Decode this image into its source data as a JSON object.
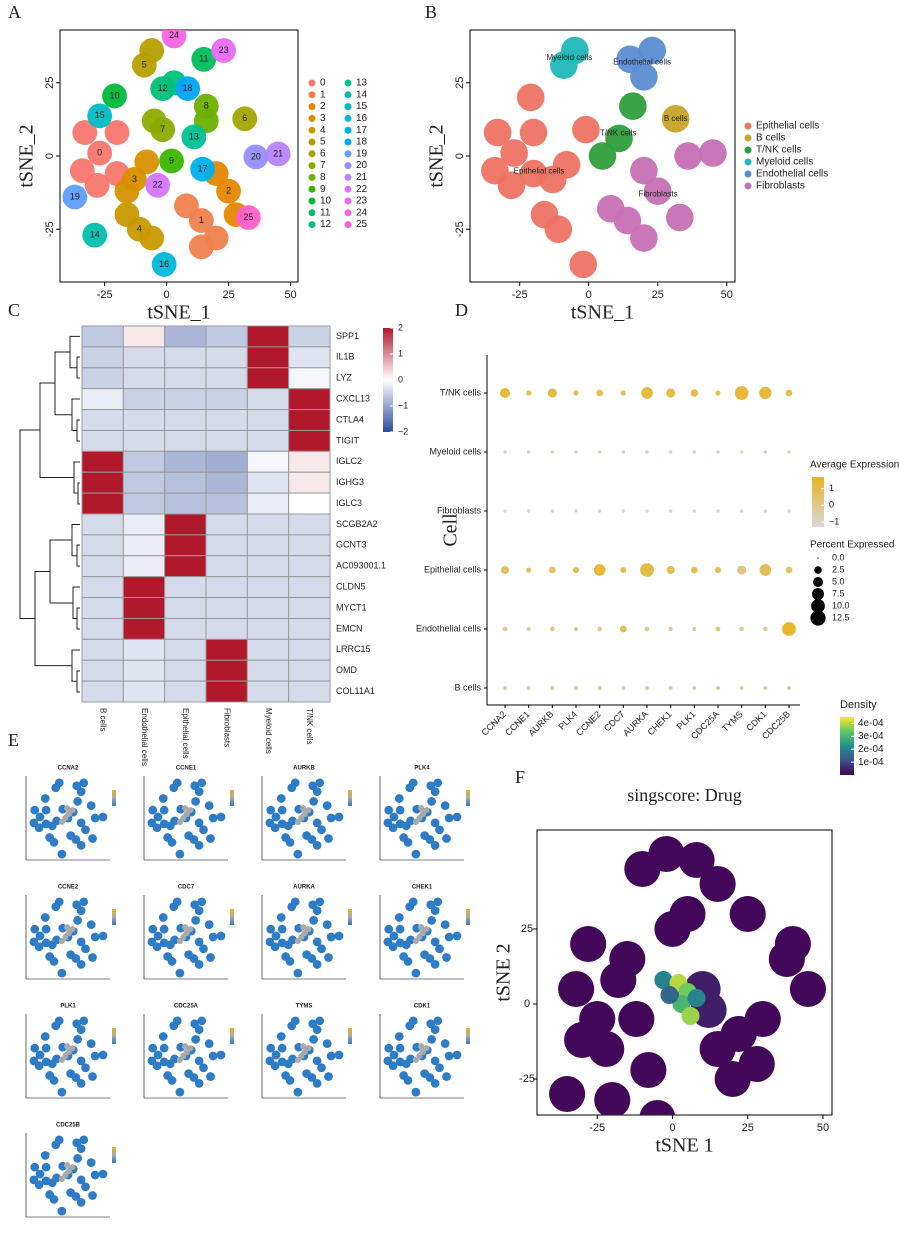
{
  "chart_data": [
    {
      "type": "scatter",
      "label": "A",
      "xlabel": "tSNE_1",
      "ylabel": "tSNE_2",
      "xlim": [
        -43,
        53
      ],
      "ylim": [
        -43,
        43
      ],
      "xticks": [
        -25,
        0,
        25,
        50
      ],
      "yticks": [
        -25,
        0,
        25
      ],
      "series": [
        {
          "name": "0",
          "color": "#F8766D",
          "x": [
            -27,
            -34,
            -20,
            -28,
            -33,
            -20
          ],
          "y": [
            1,
            -5,
            8,
            -10,
            8,
            -6
          ]
        },
        {
          "name": "1",
          "color": "#F07F4E",
          "x": [
            14,
            8,
            20,
            14
          ],
          "y": [
            -22,
            -17,
            -28,
            -31
          ]
        },
        {
          "name": "2",
          "color": "#E58700",
          "x": [
            25,
            20,
            28
          ],
          "y": [
            -12,
            -6,
            -20
          ]
        },
        {
          "name": "3",
          "color": "#D89000",
          "x": [
            -13,
            -8,
            -16
          ],
          "y": [
            -8,
            -2,
            -12
          ]
        },
        {
          "name": "4",
          "color": "#C99800",
          "x": [
            -11,
            -16,
            -6
          ],
          "y": [
            -25,
            -20,
            -28
          ]
        },
        {
          "name": "5",
          "color": "#B79F00",
          "x": [
            -9,
            -6
          ],
          "y": [
            31,
            36
          ]
        },
        {
          "name": "6",
          "color": "#A3A500",
          "x": [
            31.5
          ],
          "y": [
            12.7
          ]
        },
        {
          "name": "7",
          "color": "#8BAB00",
          "x": [
            -1.6,
            -5
          ],
          "y": [
            9,
            12
          ]
        },
        {
          "name": "8",
          "color": "#6BB100",
          "x": [
            16,
            16
          ],
          "y": [
            17,
            12
          ]
        },
        {
          "name": "9",
          "color": "#39B600",
          "x": [
            2
          ],
          "y": [
            -1.7
          ]
        },
        {
          "name": "10",
          "color": "#00BA38",
          "x": [
            -21
          ],
          "y": [
            20.5
          ]
        },
        {
          "name": "11",
          "color": "#00BD5C",
          "x": [
            15
          ],
          "y": [
            33
          ]
        },
        {
          "name": "12",
          "color": "#00C079",
          "x": [
            -1.6,
            3
          ],
          "y": [
            23,
            25
          ]
        },
        {
          "name": "13",
          "color": "#00C094",
          "x": [
            11
          ],
          "y": [
            6.5
          ]
        },
        {
          "name": "14",
          "color": "#00BFAD",
          "x": [
            -29
          ],
          "y": [
            -27
          ]
        },
        {
          "name": "15",
          "color": "#00BDC4",
          "x": [
            -27
          ],
          "y": [
            13.7
          ]
        },
        {
          "name": "16",
          "color": "#00B8DA",
          "x": [
            -1
          ],
          "y": [
            -37
          ]
        },
        {
          "name": "17",
          "color": "#00B0EC",
          "x": [
            14.5
          ],
          "y": [
            -4.5
          ]
        },
        {
          "name": "18",
          "color": "#00A5FB",
          "x": [
            8.5
          ],
          "y": [
            23
          ]
        },
        {
          "name": "19",
          "color": "#619CFF",
          "x": [
            -37
          ],
          "y": [
            -14
          ]
        },
        {
          "name": "20",
          "color": "#9590FF",
          "x": [
            36
          ],
          "y": [
            -0.3
          ]
        },
        {
          "name": "21",
          "color": "#B983FF",
          "x": [
            45
          ],
          "y": [
            0.7
          ]
        },
        {
          "name": "22",
          "color": "#D575FE",
          "x": [
            -3.6
          ],
          "y": [
            -10
          ]
        },
        {
          "name": "23",
          "color": "#E76BF3",
          "x": [
            23
          ],
          "y": [
            36
          ]
        },
        {
          "name": "24",
          "color": "#F564E3",
          "x": [
            3
          ],
          "y": [
            41
          ]
        },
        {
          "name": "25",
          "color": "#FF61C9",
          "x": [
            33
          ],
          "y": [
            -21
          ]
        }
      ]
    },
    {
      "type": "scatter",
      "label": "B",
      "xlabel": "tSNE_1",
      "ylabel": "tSNE_2",
      "xlim": [
        -43,
        53
      ],
      "ylim": [
        -43,
        43
      ],
      "xticks": [
        -25,
        0,
        25,
        50
      ],
      "yticks": [
        -25,
        0,
        25
      ],
      "series": [
        {
          "name": "Epithelial cells",
          "color": "#EE7363",
          "x": [
            -27,
            -34,
            -20,
            -28,
            -13,
            -8,
            -11,
            -16,
            -21,
            -1,
            -2,
            -33,
            -20
          ],
          "y": [
            1,
            -5,
            8,
            -10,
            -8,
            -3,
            -25,
            -20,
            20,
            9,
            -37,
            8,
            -6
          ]
        },
        {
          "name": "B cells",
          "color": "#C9A227",
          "x": [
            31.5
          ],
          "y": [
            12.7
          ]
        },
        {
          "name": "T/NK cells",
          "color": "#2E9E3B",
          "x": [
            16,
            11,
            5
          ],
          "y": [
            17,
            6,
            0
          ]
        },
        {
          "name": "Myeloid cells",
          "color": "#1FB8B8",
          "x": [
            -9,
            -5
          ],
          "y": [
            31,
            36
          ]
        },
        {
          "name": "Endothelial cells",
          "color": "#5B8DD3",
          "x": [
            15,
            23,
            20
          ],
          "y": [
            33,
            36,
            27
          ]
        },
        {
          "name": "Fibroblasts",
          "color": "#C770B6",
          "x": [
            14,
            8,
            20,
            25,
            20,
            33,
            36,
            45
          ],
          "y": [
            -22,
            -18,
            -28,
            -12,
            -5,
            -21,
            0,
            1
          ]
        }
      ]
    },
    {
      "type": "heatmap",
      "label": "C",
      "rows": [
        "SPP1",
        "IL1B",
        "LYZ",
        "CXCL13",
        "CTLA4",
        "TIGIT",
        "IGLC2",
        "IGHG3",
        "IGLC3",
        "SCGB2A2",
        "GCNT3",
        "AC093001.1",
        "CLDN5",
        "MYCT1",
        "EMCN",
        "LRRC15",
        "OMD",
        "COL11A1"
      ],
      "columns": [
        "B cells",
        "Endothelial cells",
        "Epithelial cells",
        "Fibroblasts",
        "Myeloid cells",
        "T/NK cells"
      ],
      "values": [
        [
          -0.6,
          0.2,
          -0.8,
          -0.6,
          2,
          -0.5
        ],
        [
          -0.5,
          -0.4,
          -0.4,
          -0.4,
          2,
          -0.3
        ],
        [
          -0.5,
          -0.4,
          -0.4,
          -0.4,
          2,
          -0.1
        ],
        [
          -0.2,
          -0.5,
          -0.5,
          -0.5,
          -0.4,
          2
        ],
        [
          -0.4,
          -0.4,
          -0.4,
          -0.4,
          -0.4,
          2
        ],
        [
          -0.4,
          -0.4,
          -0.4,
          -0.4,
          -0.4,
          2
        ],
        [
          2,
          -0.6,
          -0.8,
          -0.9,
          -0.1,
          0.2
        ],
        [
          2,
          -0.6,
          -0.7,
          -0.8,
          -0.3,
          0.2
        ],
        [
          2,
          -0.6,
          -0.7,
          -0.7,
          -0.2,
          0
        ],
        [
          -0.4,
          -0.2,
          2,
          -0.4,
          -0.4,
          -0.4
        ],
        [
          -0.4,
          -0.2,
          2,
          -0.4,
          -0.4,
          -0.4
        ],
        [
          -0.4,
          -0.2,
          2,
          -0.4,
          -0.4,
          -0.4
        ],
        [
          -0.4,
          2,
          -0.4,
          -0.4,
          -0.4,
          -0.4
        ],
        [
          -0.4,
          2,
          -0.4,
          -0.4,
          -0.4,
          -0.4
        ],
        [
          -0.4,
          2,
          -0.4,
          -0.4,
          -0.4,
          -0.4
        ],
        [
          -0.4,
          -0.3,
          -0.4,
          2,
          -0.4,
          -0.4
        ],
        [
          -0.4,
          -0.3,
          -0.4,
          2,
          -0.4,
          -0.4
        ],
        [
          -0.4,
          -0.3,
          -0.4,
          2,
          -0.4,
          -0.4
        ]
      ],
      "colorbar_lim": [
        -2,
        2
      ],
      "colorbar_ticks": [
        2,
        1,
        0,
        {
          "value": -1,
          "label": "−1"
        },
        {
          "value": -2,
          "label": "−2"
        }
      ],
      "colors": [
        "#2B4C9B",
        "#FFFFFF",
        "#B2182B"
      ]
    },
    {
      "type": "dotplot",
      "label": "D",
      "ylabel": "Cell",
      "rows": [
        "T/NK cells",
        "Myeloid cells",
        "Fibroblasts",
        "Epithelial cells",
        "Endothelial cells",
        "B cells"
      ],
      "columns": [
        "CCNA2",
        "CCNE1",
        "AURKB",
        "PLK4",
        "CCNE2",
        "CDC7",
        "AURKA",
        "CHEK1",
        "PLK1",
        "CDC25A",
        "TYMS",
        "CDK1",
        "CDC25B"
      ],
      "expression": [
        [
          1.3,
          0.8,
          1.2,
          0.9,
          1.0,
          0.9,
          1.2,
          1.1,
          1.0,
          0.8,
          1.3,
          1.3,
          0.9
        ],
        [
          -0.6,
          -0.6,
          -0.6,
          -0.6,
          -0.6,
          -0.6,
          -0.6,
          -0.6,
          -0.6,
          -0.6,
          -0.6,
          -0.6,
          -0.6
        ],
        [
          -0.9,
          -0.9,
          -0.9,
          -0.9,
          -0.9,
          -0.9,
          -0.9,
          -0.9,
          -0.9,
          -0.9,
          -0.9,
          -0.9,
          -0.9
        ],
        [
          0.7,
          0.6,
          0.6,
          0.8,
          1.3,
          0.8,
          1.1,
          0.9,
          0.8,
          0.9,
          0.1,
          0.9,
          0.5
        ],
        [
          -0.1,
          -0.2,
          0,
          0.2,
          0,
          1.0,
          -0.2,
          0,
          -0.2,
          0.3,
          -0.3,
          -0.1,
          1.6
        ],
        [
          -0.3,
          -0.5,
          -0.3,
          -0.3,
          -0.3,
          -0.5,
          -0.3,
          -0.3,
          -0.5,
          -0.3,
          -0.3,
          -0.3,
          -0.3
        ]
      ],
      "percent": [
        [
          5,
          1,
          4,
          1,
          2,
          1,
          7,
          4,
          2.5,
          1,
          10,
          8,
          2
        ],
        [
          0.3,
          0.3,
          0.3,
          0.3,
          0.3,
          0.3,
          0.3,
          0.3,
          0.3,
          0.3,
          0.3,
          0.3,
          0.3
        ],
        [
          0.3,
          0.3,
          0.3,
          0.3,
          0.3,
          0.3,
          0.3,
          0.3,
          0.3,
          0.3,
          0.3,
          0.3,
          0.3
        ],
        [
          3,
          1,
          2,
          1.5,
          7,
          1.5,
          10,
          3,
          2,
          1.5,
          4,
          7,
          2
        ],
        [
          0.8,
          0.5,
          0.8,
          0.5,
          0.8,
          2,
          0.8,
          0.5,
          0.5,
          0.8,
          0.8,
          0.8,
          10
        ],
        [
          0.5,
          0.5,
          0.5,
          0.5,
          0.5,
          0.5,
          0.5,
          0.5,
          0.5,
          0.5,
          0.5,
          0.5,
          0.5
        ]
      ],
      "color_title": "Average Expression",
      "color_lim": [
        -1.3,
        1.7
      ],
      "color_ticks": [
        1,
        0,
        {
          "value": -1,
          "label": "−1"
        }
      ],
      "colors": [
        "#D9D9D9",
        "#E8B422"
      ],
      "size_title": "Percent Expressed",
      "size_lim": [
        0,
        12.5
      ],
      "size_ticks": [
        {
          "value": 0,
          "label": "0.0"
        },
        2.5,
        {
          "value": 5,
          "label": "5.0"
        },
        7.5,
        {
          "value": 10,
          "label": "10.0"
        },
        12.5
      ]
    },
    {
      "type": "feature_grid",
      "label": "E",
      "genes": [
        "CCNA2",
        "CCNE1",
        "AURKB",
        "PLK4",
        "CCNE2",
        "CDC7",
        "AURKA",
        "CHEK1",
        "PLK1",
        "CDC25A",
        "TYMS",
        "CDK1",
        "CDC25B"
      ],
      "xlim": [
        -43,
        53
      ],
      "ylim": [
        -43,
        43
      ],
      "color": "#2E7CC5",
      "highlight_color": "#A9A9A9",
      "x": [
        -27,
        -34,
        -20,
        -28,
        -13,
        -8,
        -11,
        -16,
        -21,
        -1,
        -2,
        14,
        8,
        20,
        25,
        20,
        33,
        36,
        45,
        -9,
        -5,
        15,
        23,
        20,
        31.5,
        16,
        11,
        5,
        -33,
        -20
      ],
      "y": [
        1,
        -5,
        8,
        -10,
        -8,
        -3,
        -25,
        -20,
        20,
        9,
        -37,
        -22,
        -18,
        -28,
        -12,
        -5,
        -21,
        0,
        1,
        31,
        36,
        33,
        36,
        27,
        12.7,
        17,
        6,
        0,
        8,
        -6
      ],
      "highlight_x": [
        2,
        6,
        10,
        -2,
        4
      ],
      "highlight_y": [
        0,
        4,
        8,
        -4,
        10
      ]
    },
    {
      "type": "density_scatter",
      "label": "F",
      "title": "singscore: Drug",
      "xlabel": "tSNE 1",
      "ylabel": "tSNE 2",
      "xlim": [
        -45,
        53
      ],
      "ylim": [
        -37,
        58
      ],
      "xticks": [
        -25,
        0,
        25,
        50
      ],
      "yticks": [
        -25,
        0,
        25
      ],
      "legend_title": "Density",
      "density_lim": [
        0,
        0.00045
      ],
      "colorbar_ticks": [
        {
          "value": 0.0004,
          "label": "4e-04"
        },
        {
          "value": 0.0003,
          "label": "3e-04"
        },
        {
          "value": 0.0002,
          "label": "2e-04"
        },
        {
          "value": 0.0001,
          "label": "1e-04"
        }
      ],
      "x": [
        -32,
        -25,
        -18,
        -30,
        -22,
        -12,
        -15,
        -28,
        15,
        22,
        28,
        20,
        30,
        38,
        -10,
        -2,
        8,
        15,
        25,
        40,
        45,
        -5,
        0,
        5,
        -35,
        -20,
        -8,
        2,
        10,
        12,
        -3,
        2,
        5,
        3,
        6,
        -1,
        8
      ],
      "y": [
        5,
        -5,
        8,
        -12,
        -15,
        -5,
        15,
        20,
        -15,
        -10,
        -20,
        -25,
        -5,
        15,
        45,
        50,
        48,
        40,
        30,
        20,
        5,
        -38,
        25,
        30,
        -30,
        -32,
        -22,
        5,
        5,
        -2,
        8,
        7,
        4,
        0,
        -4,
        3,
        2
      ],
      "density": [
        1e-05,
        1e-05,
        1e-05,
        1e-05,
        1e-05,
        1e-05,
        1e-05,
        1e-05,
        1e-05,
        1e-05,
        1e-05,
        1e-05,
        1e-05,
        1e-05,
        1e-05,
        1e-05,
        1e-05,
        1e-05,
        1e-05,
        1e-05,
        1e-05,
        1e-05,
        1e-05,
        1e-05,
        1e-05,
        1e-05,
        1e-05,
        5e-05,
        4e-05,
        4e-05,
        0.0002,
        0.0004,
        0.00035,
        0.0003,
        0.00038,
        0.00015,
        0.0002
      ]
    }
  ]
}
